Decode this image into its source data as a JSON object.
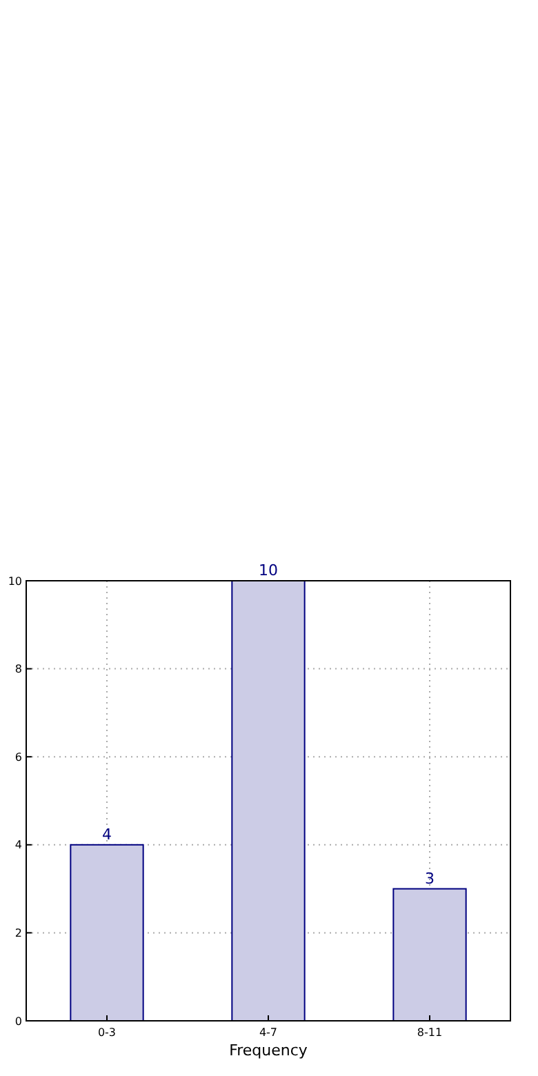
{
  "chart_data": {
    "type": "bar",
    "xlabel": "Frequency",
    "categories": [
      "0-3",
      "4-7",
      "8-11"
    ],
    "series": [
      {
        "color": "#ccccE6",
        "values": [
          4,
          10,
          3
        ]
      }
    ],
    "ylim": [
      0,
      10
    ],
    "yticks": [
      0,
      2,
      4,
      6,
      8,
      10
    ],
    "grid": true,
    "data_labels": true
  }
}
